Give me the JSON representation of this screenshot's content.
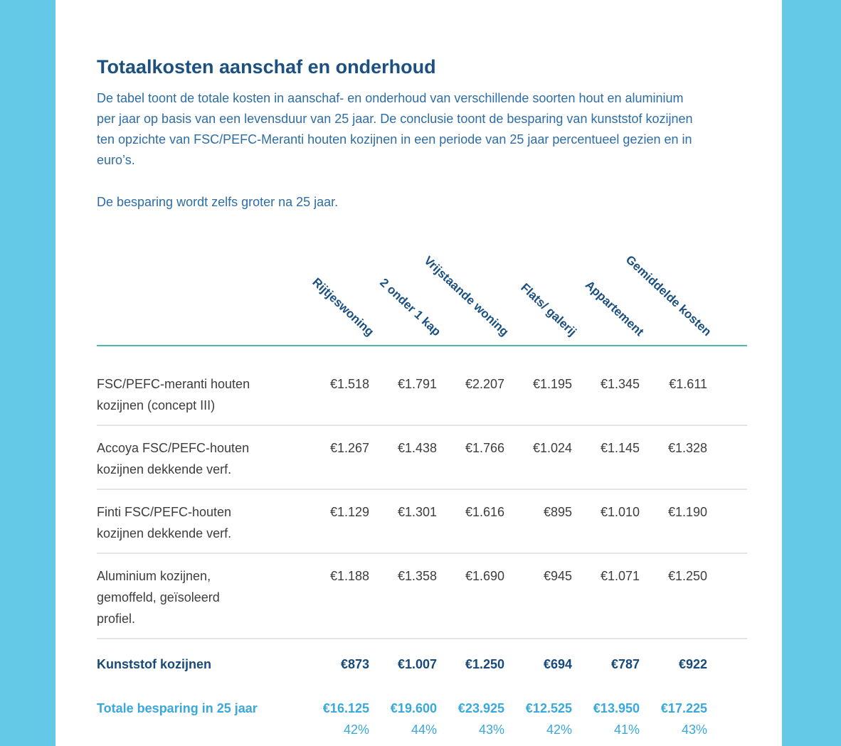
{
  "theme": {
    "side_cyan": "#63c9e6",
    "navy": "#1b5080",
    "body_blue": "#2e6da4",
    "teal": "#4fb6ab",
    "text_gray": "#3d3d3b",
    "separator": "#e5e5e3",
    "navy_strong": "#174a7a",
    "cyan_accent": "#38a8dd"
  },
  "article": {
    "title": "Totaalkosten aanschaf en onderhoud",
    "intro": "De tabel toont de totale kosten in aanschaf- en onderhoud van verschillende soorten hout en aluminium\nper jaar op basis van een levensduur van 25 jaar. De conclusie toont de besparing van kunststof kozijnen\nten opzichte van FSC/PEFC-Meranti houten kozijnen in een periode van 25 jaar percentueel gezien en in\neuro’s.",
    "note": "De besparing wordt zelfs groter na 25 jaar."
  },
  "table": {
    "columns": [
      "Rijtjeswoning",
      "2 onder 1 kap",
      "Vrijstaande woning",
      "Flats/ galerij",
      "Appartement",
      "Gemiddelde kosten"
    ],
    "rows": [
      {
        "label": "FSC/PEFC-meranti houten\nkozijnen (concept III)",
        "values": [
          "€1.518",
          "€1.791",
          "€2.207",
          "€1.195",
          "€1.345",
          "€1.611"
        ],
        "style": "normal"
      },
      {
        "label": "Accoya FSC/PEFC-houten\nkozijnen dekkende verf.",
        "values": [
          "€1.267",
          "€1.438",
          "€1.766",
          "€1.024",
          "€1.145",
          "€1.328"
        ],
        "style": "normal"
      },
      {
        "label": "Finti FSC/PEFC-houten\nkozijnen dekkende verf.",
        "values": [
          "€1.129",
          "€1.301",
          "€1.616",
          "€895",
          "€1.010",
          "€1.190"
        ],
        "style": "normal"
      },
      {
        "label": "Aluminium kozijnen,\ngemoffeld, geïsoleerd\nprofiel.",
        "values": [
          "€1.188",
          "€1.358",
          "€1.690",
          "€945",
          "€1.071",
          "€1.250"
        ],
        "style": "normal"
      },
      {
        "label": "Kunststof kozijnen",
        "values": [
          "€873",
          "€1.007",
          "€1.250",
          "€694",
          "€787",
          "€922"
        ],
        "style": "emphasis-navy"
      },
      {
        "label": "Totale besparing in 25 jaar",
        "values": [
          "€16.125",
          "€19.600",
          "€23.925",
          "€12.525",
          "€13.950",
          "€17.225"
        ],
        "style": "emphasis-cyan",
        "sub_values": [
          "42%",
          "44%",
          "43%",
          "42%",
          "41%",
          "43%"
        ]
      }
    ]
  }
}
